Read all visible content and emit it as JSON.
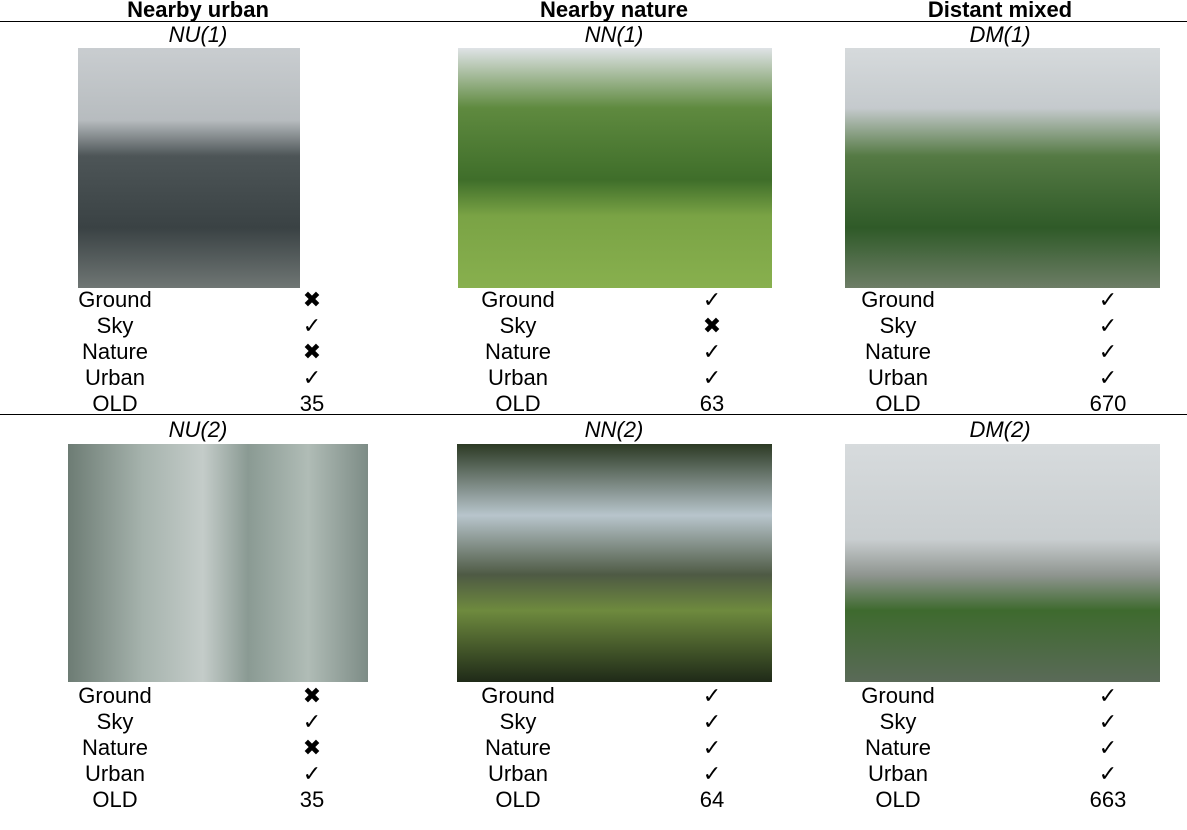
{
  "table": {
    "headers": [
      "Nearby urban",
      "Nearby nature",
      "Distant mixed"
    ],
    "groups": [
      {
        "cells": [
          {
            "label": "NU(1)",
            "rows": [
              [
                "Ground",
                "✖"
              ],
              [
                "Sky",
                "✓"
              ],
              [
                "Nature",
                "✖"
              ],
              [
                "Urban",
                "✓"
              ],
              [
                "OLD",
                "35"
              ]
            ]
          },
          {
            "label": "NN(1)",
            "rows": [
              [
                "Ground",
                "✓"
              ],
              [
                "Sky",
                "✖"
              ],
              [
                "Nature",
                "✓"
              ],
              [
                "Urban",
                "✓"
              ],
              [
                "OLD",
                "63"
              ]
            ]
          },
          {
            "label": "DM(1)",
            "rows": [
              [
                "Ground",
                "✓"
              ],
              [
                "Sky",
                "✓"
              ],
              [
                "Nature",
                "✓"
              ],
              [
                "Urban",
                "✓"
              ],
              [
                "OLD",
                "670"
              ]
            ]
          }
        ]
      },
      {
        "cells": [
          {
            "label": "NU(2)",
            "rows": [
              [
                "Ground",
                "✖"
              ],
              [
                "Sky",
                "✓"
              ],
              [
                "Nature",
                "✖"
              ],
              [
                "Urban",
                "✓"
              ],
              [
                "OLD",
                "35"
              ]
            ]
          },
          {
            "label": "NN(2)",
            "rows": [
              [
                "Ground",
                "✓"
              ],
              [
                "Sky",
                "✓"
              ],
              [
                "Nature",
                "✓"
              ],
              [
                "Urban",
                "✓"
              ],
              [
                "OLD",
                "64"
              ]
            ]
          },
          {
            "label": "DM(2)",
            "rows": [
              [
                "Ground",
                "✓"
              ],
              [
                "Sky",
                "✓"
              ],
              [
                "Nature",
                "✓"
              ],
              [
                "Urban",
                "✓"
              ],
              [
                "OLD",
                "663"
              ]
            ]
          }
        ]
      }
    ]
  }
}
